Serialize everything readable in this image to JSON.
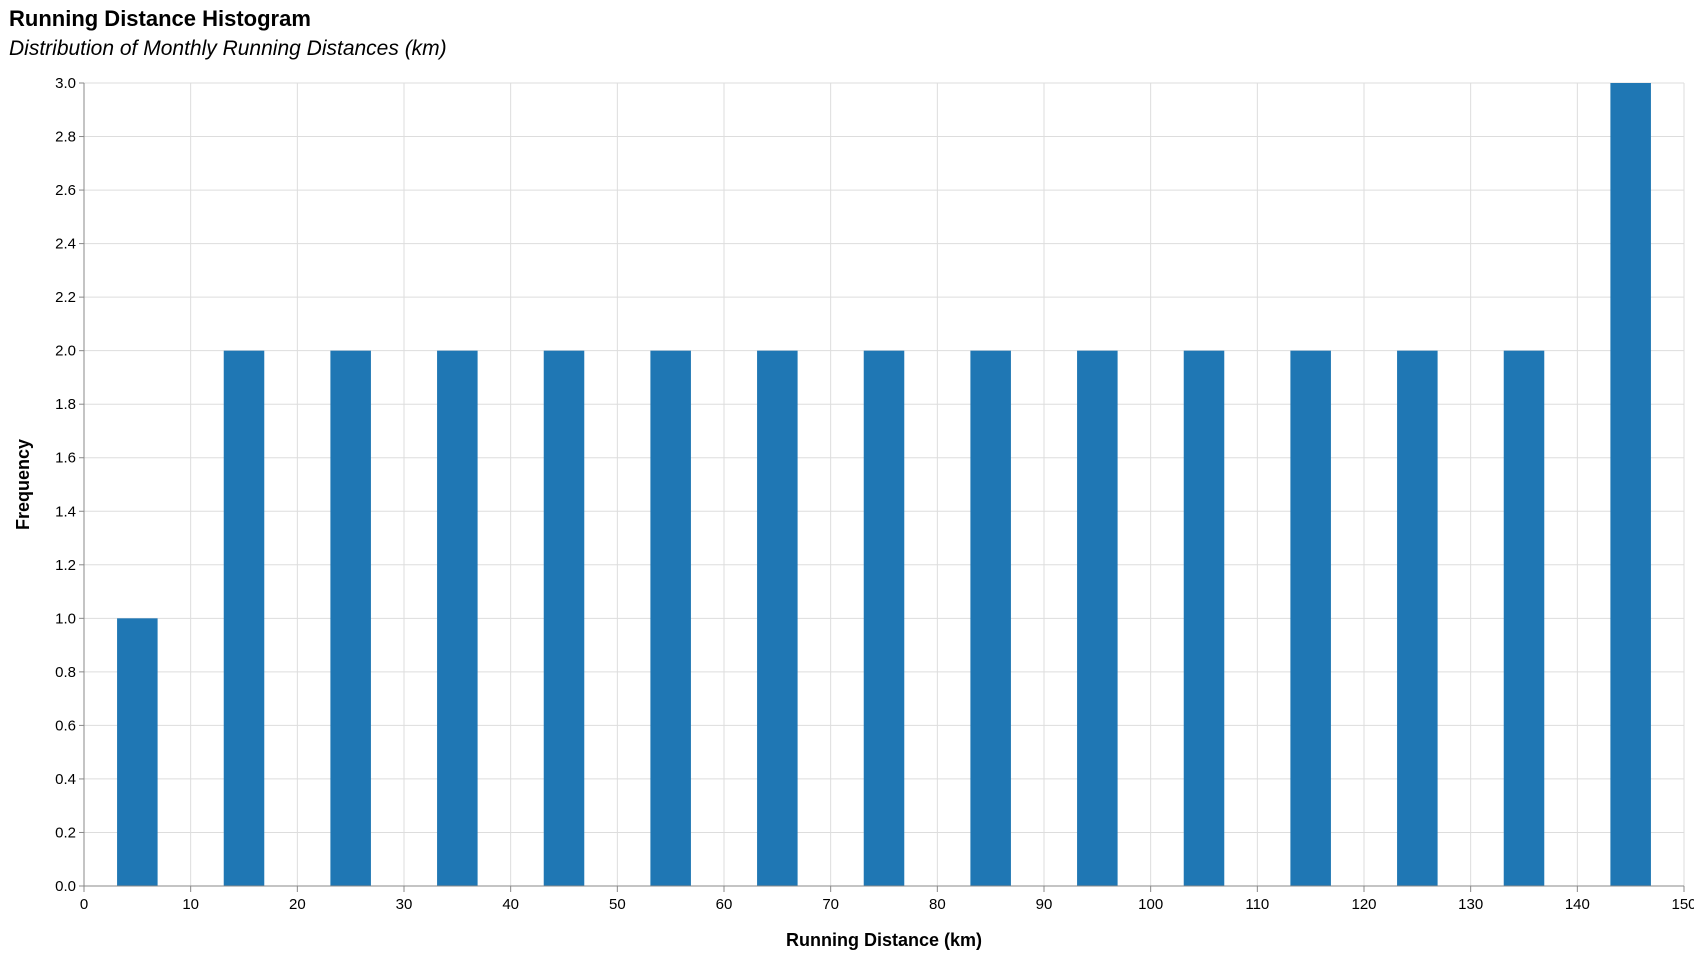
{
  "chart_data": {
    "type": "bar",
    "title": "Running Distance Histogram",
    "subtitle": "Distribution of Monthly Running Distances (km)",
    "xlabel": "Running Distance (km)",
    "ylabel": "Frequency",
    "bin_step": 10,
    "bins": [
      {
        "start": 0,
        "end": 10,
        "count": 1
      },
      {
        "start": 10,
        "end": 20,
        "count": 2
      },
      {
        "start": 20,
        "end": 30,
        "count": 2
      },
      {
        "start": 30,
        "end": 40,
        "count": 2
      },
      {
        "start": 40,
        "end": 50,
        "count": 2
      },
      {
        "start": 50,
        "end": 60,
        "count": 2
      },
      {
        "start": 60,
        "end": 70,
        "count": 2
      },
      {
        "start": 70,
        "end": 80,
        "count": 2
      },
      {
        "start": 80,
        "end": 90,
        "count": 2
      },
      {
        "start": 90,
        "end": 100,
        "count": 2
      },
      {
        "start": 100,
        "end": 110,
        "count": 2
      },
      {
        "start": 110,
        "end": 120,
        "count": 2
      },
      {
        "start": 120,
        "end": 130,
        "count": 2
      },
      {
        "start": 130,
        "end": 140,
        "count": 2
      },
      {
        "start": 140,
        "end": 150,
        "count": 3
      }
    ],
    "xlim": [
      0,
      150
    ],
    "ylim": [
      0,
      3
    ],
    "x_ticks": [
      "0",
      "10",
      "20",
      "30",
      "40",
      "50",
      "60",
      "70",
      "80",
      "90",
      "100",
      "110",
      "120",
      "130",
      "140",
      "150"
    ],
    "y_ticks": [
      "0.0",
      "0.2",
      "0.4",
      "0.6",
      "0.8",
      "1.0",
      "1.2",
      "1.4",
      "1.6",
      "1.8",
      "2.0",
      "2.2",
      "2.4",
      "2.6",
      "2.8",
      "3.0"
    ],
    "grid": true,
    "bar_color": "#1f77b4",
    "grid_color": "#dddddd",
    "axis_color": "#888888"
  }
}
